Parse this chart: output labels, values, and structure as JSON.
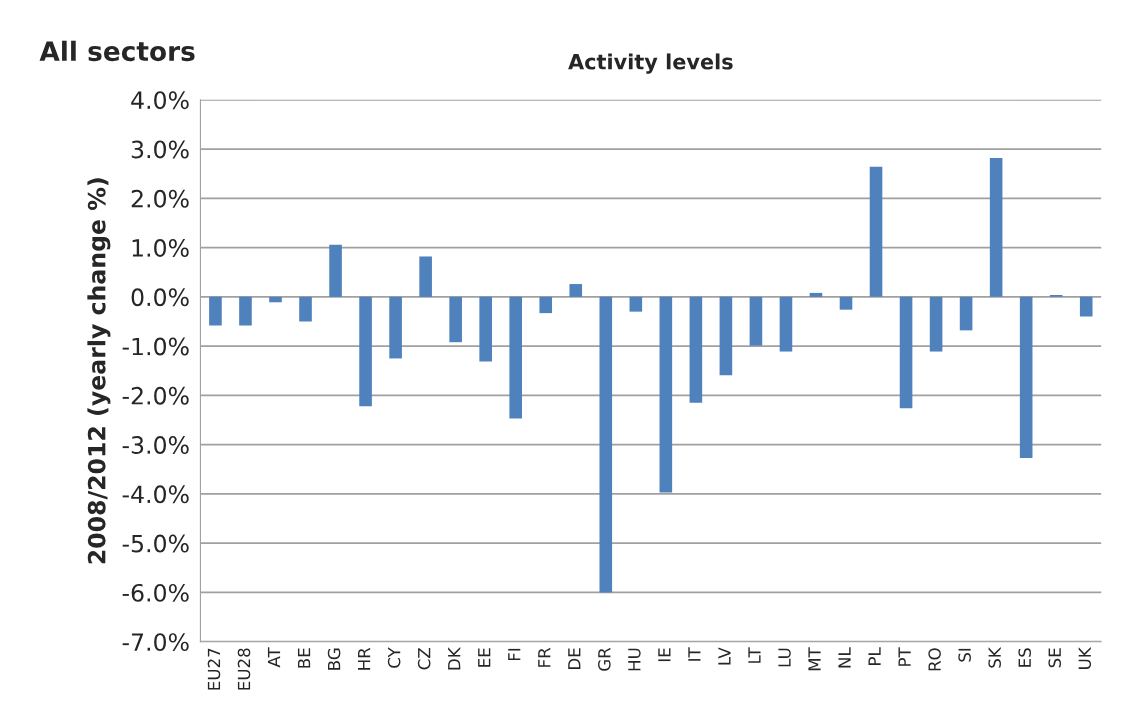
{
  "chart_data": {
    "type": "bar",
    "title": "Activity levels",
    "ylabel": "2008/2012 (yearly change %)",
    "annotations": [
      "All sectors"
    ],
    "categories": [
      "EU27",
      "EU28",
      "AT",
      "BE",
      "BG",
      "HR",
      "CY",
      "CZ",
      "DK",
      "EE",
      "FI",
      "FR",
      "DE",
      "GR",
      "HU",
      "IE",
      "IT",
      "LV",
      "LT",
      "LU",
      "MT",
      "NL",
      "PL",
      "PT",
      "RO",
      "SI",
      "SK",
      "ES",
      "SE",
      "UK"
    ],
    "values": [
      -0.58,
      -0.58,
      -0.11,
      -0.5,
      1.06,
      -2.22,
      -1.25,
      0.82,
      -0.92,
      -1.31,
      -2.47,
      -0.33,
      0.26,
      -6.0,
      -0.3,
      -3.97,
      -2.15,
      -1.59,
      -0.99,
      -1.11,
      0.08,
      -0.26,
      2.64,
      -2.26,
      -1.11,
      -0.68,
      2.82,
      -3.27,
      0.04,
      -0.4
    ],
    "color": "#4f81bd",
    "ylim": [
      -7,
      4
    ],
    "yticks": [
      {
        "value": -7,
        "label": "-7.0%"
      },
      {
        "value": -6,
        "label": "-6.0%"
      },
      {
        "value": -5,
        "label": "-5.0%"
      },
      {
        "value": -4,
        "label": "-4.0%"
      },
      {
        "value": -3,
        "label": "-3.0%"
      },
      {
        "value": -2,
        "label": "-2.0%"
      },
      {
        "value": -1,
        "label": "-1.0%"
      },
      {
        "value": 0,
        "label": "0.0%"
      },
      {
        "value": 1,
        "label": "1.0%"
      },
      {
        "value": 2,
        "label": "2.0%"
      },
      {
        "value": 3,
        "label": "3.0%"
      },
      {
        "value": 4,
        "label": "4.0%"
      }
    ],
    "grid": "y",
    "legend": false
  }
}
